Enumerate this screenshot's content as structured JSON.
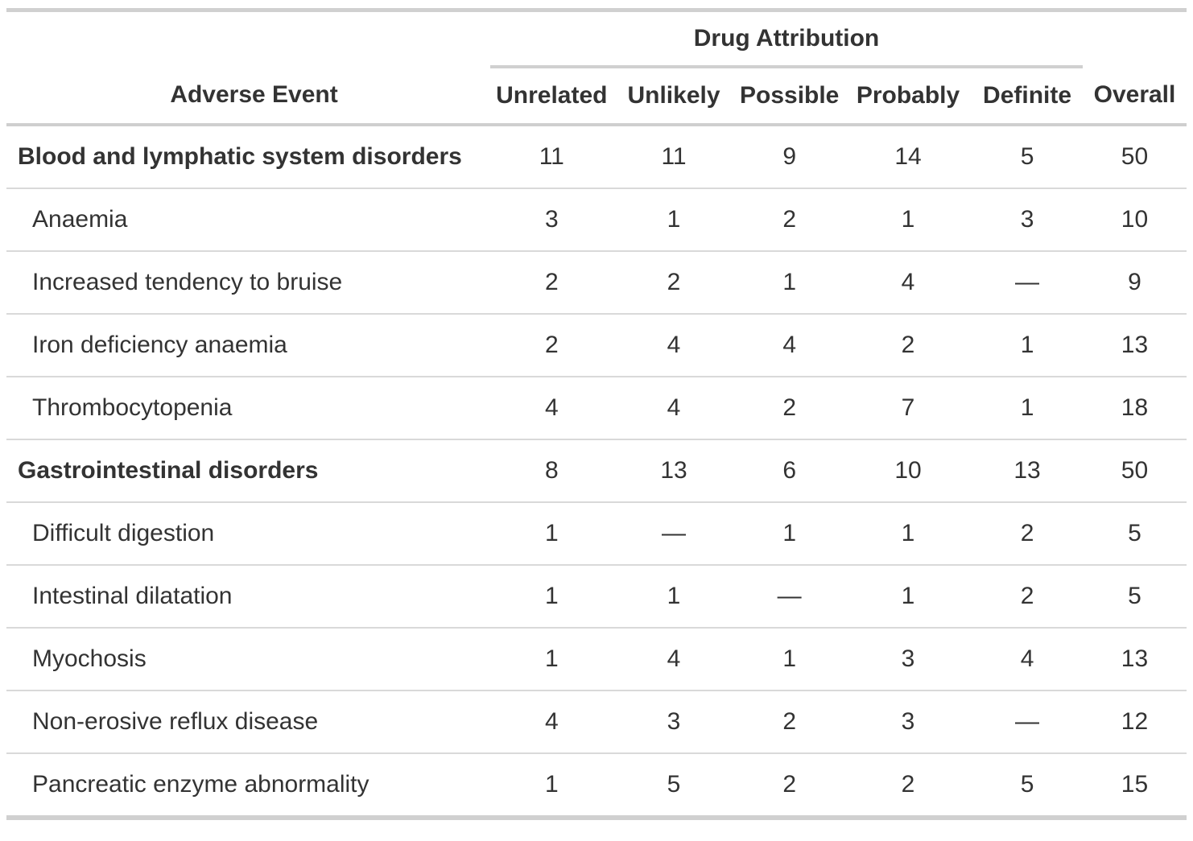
{
  "chart_data": {
    "type": "table",
    "spanner": "Drug Attribution",
    "stub_header": "Adverse Event",
    "columns": [
      "Unrelated",
      "Unlikely",
      "Possible",
      "Probably",
      "Definite",
      "Overall"
    ],
    "spanner_columns": [
      "Unrelated",
      "Unlikely",
      "Possible",
      "Probably",
      "Definite"
    ],
    "rows": [
      {
        "label": "Blood and lymphatic system disorders",
        "level": "group",
        "values": [
          "11",
          "11",
          "9",
          "14",
          "5",
          "50"
        ]
      },
      {
        "label": "Anaemia",
        "level": "sub",
        "values": [
          "3",
          "1",
          "2",
          "1",
          "3",
          "10"
        ]
      },
      {
        "label": "Increased tendency to bruise",
        "level": "sub",
        "values": [
          "2",
          "2",
          "1",
          "4",
          "—",
          "9"
        ]
      },
      {
        "label": "Iron deficiency anaemia",
        "level": "sub",
        "values": [
          "2",
          "4",
          "4",
          "2",
          "1",
          "13"
        ]
      },
      {
        "label": "Thrombocytopenia",
        "level": "sub",
        "values": [
          "4",
          "4",
          "2",
          "7",
          "1",
          "18"
        ]
      },
      {
        "label": "Gastrointestinal disorders",
        "level": "group",
        "values": [
          "8",
          "13",
          "6",
          "10",
          "13",
          "50"
        ]
      },
      {
        "label": "Difficult digestion",
        "level": "sub",
        "values": [
          "1",
          "—",
          "1",
          "1",
          "2",
          "5"
        ]
      },
      {
        "label": "Intestinal dilatation",
        "level": "sub",
        "values": [
          "1",
          "1",
          "—",
          "1",
          "2",
          "5"
        ]
      },
      {
        "label": "Myochosis",
        "level": "sub",
        "values": [
          "1",
          "4",
          "1",
          "3",
          "4",
          "13"
        ]
      },
      {
        "label": "Non-erosive reflux disease",
        "level": "sub",
        "values": [
          "4",
          "3",
          "2",
          "3",
          "—",
          "12"
        ]
      },
      {
        "label": "Pancreatic enzyme abnormality",
        "level": "sub",
        "values": [
          "1",
          "5",
          "2",
          "2",
          "5",
          "15"
        ]
      }
    ],
    "empty_cell_marker": "—",
    "layout": {
      "grid": "horizontal-rules-only",
      "spanner_underline_columns": "Unrelated through Definite",
      "group_rows_bold_label_only": true
    },
    "colors": {
      "text": "#333333",
      "border_heavy": "#d0d0d0",
      "border_light": "#d9d9d9",
      "background": "#ffffff"
    }
  }
}
